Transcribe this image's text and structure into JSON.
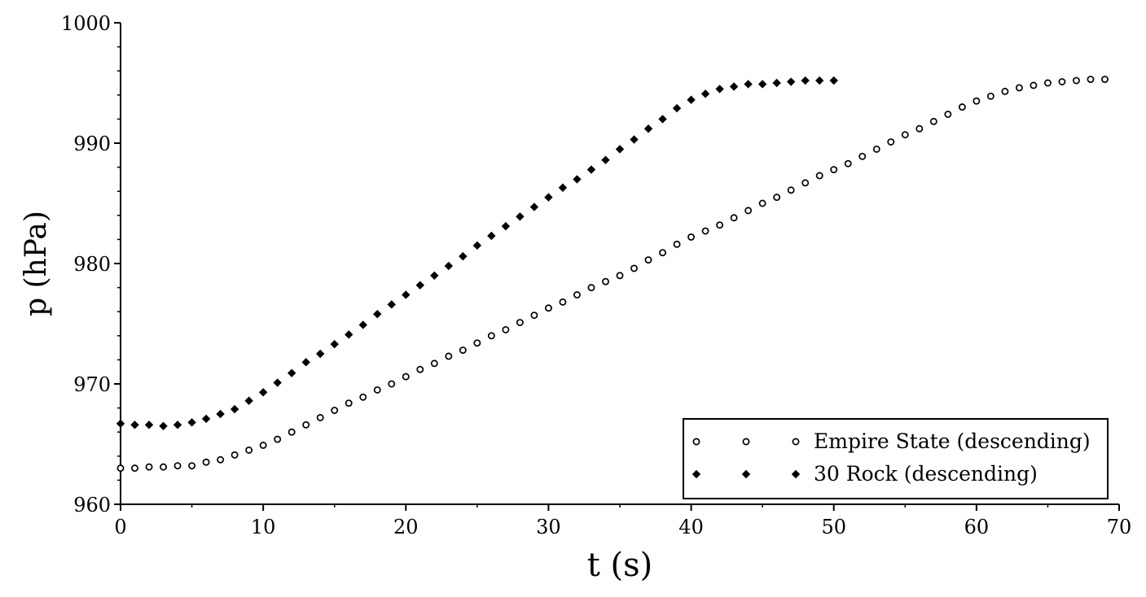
{
  "chart_data": {
    "type": "scatter",
    "xlabel": "t (s)",
    "ylabel": "p (hPa)",
    "xlim": [
      0,
      70
    ],
    "ylim": [
      960,
      1000
    ],
    "xticks": [
      0,
      10,
      20,
      30,
      40,
      50,
      60,
      70
    ],
    "yticks": [
      960,
      970,
      980,
      990,
      1000
    ],
    "grid": false,
    "legend_position": "bottom-right",
    "series": [
      {
        "name": "Empire State (descending)",
        "marker": "open-circle",
        "x": [
          0,
          1,
          2,
          3,
          4,
          5,
          6,
          7,
          8,
          9,
          10,
          11,
          12,
          13,
          14,
          15,
          16,
          17,
          18,
          19,
          20,
          21,
          22,
          23,
          24,
          25,
          26,
          27,
          28,
          29,
          30,
          31,
          32,
          33,
          34,
          35,
          36,
          37,
          38,
          39,
          40,
          41,
          42,
          43,
          44,
          45,
          46,
          47,
          48,
          49,
          50,
          51,
          52,
          53,
          54,
          55,
          56,
          57,
          58,
          59,
          60,
          61,
          62,
          63,
          64,
          65,
          66,
          67,
          68,
          69
        ],
        "y": [
          963.0,
          963.0,
          963.1,
          963.1,
          963.2,
          963.2,
          963.5,
          963.7,
          964.1,
          964.5,
          964.9,
          965.4,
          966.0,
          966.6,
          967.2,
          967.8,
          968.4,
          968.9,
          969.5,
          970.0,
          970.6,
          971.2,
          971.7,
          972.3,
          972.8,
          973.4,
          974.0,
          974.5,
          975.1,
          975.7,
          976.3,
          976.8,
          977.4,
          978.0,
          978.5,
          979.0,
          979.6,
          980.3,
          980.9,
          981.6,
          982.2,
          982.7,
          983.2,
          983.8,
          984.4,
          985.0,
          985.5,
          986.1,
          986.7,
          987.3,
          987.8,
          988.3,
          988.9,
          989.5,
          990.1,
          990.7,
          991.2,
          991.8,
          992.4,
          993.0,
          993.5,
          993.9,
          994.3,
          994.6,
          994.8,
          995.0,
          995.1,
          995.2,
          995.3,
          995.3
        ]
      },
      {
        "name": "30 Rock (descending)",
        "marker": "filled-diamond",
        "x": [
          0,
          1,
          2,
          3,
          4,
          5,
          6,
          7,
          8,
          9,
          10,
          11,
          12,
          13,
          14,
          15,
          16,
          17,
          18,
          19,
          20,
          21,
          22,
          23,
          24,
          25,
          26,
          27,
          28,
          29,
          30,
          31,
          32,
          33,
          34,
          35,
          36,
          37,
          38,
          39,
          40,
          41,
          42,
          43,
          44,
          45,
          46,
          47,
          48,
          49,
          50
        ],
        "y": [
          966.7,
          966.6,
          966.6,
          966.5,
          966.6,
          966.8,
          967.1,
          967.5,
          967.9,
          968.6,
          969.3,
          970.1,
          970.9,
          971.8,
          972.5,
          973.3,
          974.1,
          974.9,
          975.8,
          976.6,
          977.4,
          978.2,
          979.0,
          979.8,
          980.6,
          981.5,
          982.3,
          983.1,
          983.9,
          984.7,
          985.5,
          986.3,
          987.0,
          987.8,
          988.6,
          989.5,
          990.3,
          991.2,
          992.0,
          992.9,
          993.6,
          994.1,
          994.5,
          994.7,
          994.9,
          994.9,
          995.0,
          995.1,
          995.2,
          995.2,
          995.2
        ]
      }
    ]
  }
}
